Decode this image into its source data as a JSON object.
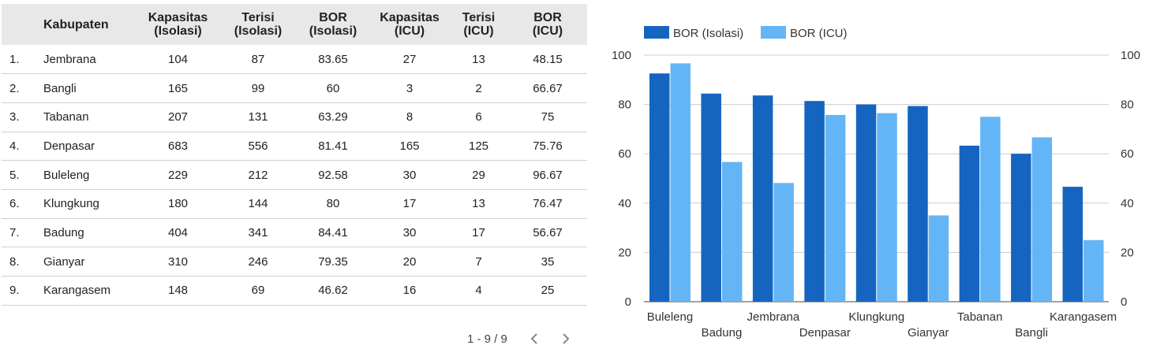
{
  "table": {
    "headers": {
      "kabupaten": "Kabupaten",
      "kap_iso": [
        "Kapasitas",
        "(Isolasi)"
      ],
      "ter_iso": [
        "Terisi",
        "(Isolasi)"
      ],
      "bor_iso": [
        "BOR",
        "(Isolasi)"
      ],
      "kap_icu": [
        "Kapasitas",
        "(ICU)"
      ],
      "ter_icu": [
        "Terisi",
        "(ICU)"
      ],
      "bor_icu": [
        "BOR",
        "(ICU)"
      ]
    },
    "rows": [
      {
        "idx": "1.",
        "kab": "Jembrana",
        "kap_iso": "104",
        "ter_iso": "87",
        "bor_iso": "83.65",
        "kap_icu": "27",
        "ter_icu": "13",
        "bor_icu": "48.15"
      },
      {
        "idx": "2.",
        "kab": "Bangli",
        "kap_iso": "165",
        "ter_iso": "99",
        "bor_iso": "60",
        "kap_icu": "3",
        "ter_icu": "2",
        "bor_icu": "66.67"
      },
      {
        "idx": "3.",
        "kab": "Tabanan",
        "kap_iso": "207",
        "ter_iso": "131",
        "bor_iso": "63.29",
        "kap_icu": "8",
        "ter_icu": "6",
        "bor_icu": "75"
      },
      {
        "idx": "4.",
        "kab": "Denpasar",
        "kap_iso": "683",
        "ter_iso": "556",
        "bor_iso": "81.41",
        "kap_icu": "165",
        "ter_icu": "125",
        "bor_icu": "75.76"
      },
      {
        "idx": "5.",
        "kab": "Buleleng",
        "kap_iso": "229",
        "ter_iso": "212",
        "bor_iso": "92.58",
        "kap_icu": "30",
        "ter_icu": "29",
        "bor_icu": "96.67"
      },
      {
        "idx": "6.",
        "kab": "Klungkung",
        "kap_iso": "180",
        "ter_iso": "144",
        "bor_iso": "80",
        "kap_icu": "17",
        "ter_icu": "13",
        "bor_icu": "76.47"
      },
      {
        "idx": "7.",
        "kab": "Badung",
        "kap_iso": "404",
        "ter_iso": "341",
        "bor_iso": "84.41",
        "kap_icu": "30",
        "ter_icu": "17",
        "bor_icu": "56.67"
      },
      {
        "idx": "8.",
        "kab": "Gianyar",
        "kap_iso": "310",
        "ter_iso": "246",
        "bor_iso": "79.35",
        "kap_icu": "20",
        "ter_icu": "7",
        "bor_icu": "35"
      },
      {
        "idx": "9.",
        "kab": "Karangasem",
        "kap_iso": "148",
        "ter_iso": "69",
        "bor_iso": "46.62",
        "kap_icu": "16",
        "ter_icu": "4",
        "bor_icu": "25"
      }
    ]
  },
  "pager": {
    "info": "1 - 9 / 9",
    "prev_icon": "chevron-left-icon",
    "next_icon": "chevron-right-icon"
  },
  "chart_data": {
    "type": "bar",
    "title": "",
    "xlabel": "",
    "ylabel": "",
    "ylim": [
      0,
      100
    ],
    "yticks": [
      0,
      20,
      40,
      60,
      80,
      100
    ],
    "grid": true,
    "legend_position": "top-left",
    "categories": [
      "Buleleng",
      "Badung",
      "Jembrana",
      "Denpasar",
      "Klungkung",
      "Gianyar",
      "Tabanan",
      "Bangli",
      "Karangasem"
    ],
    "series": [
      {
        "name": "BOR (Isolasi)",
        "color": "#1565c0",
        "values": [
          92.58,
          84.41,
          83.65,
          81.41,
          80,
          79.35,
          63.29,
          60,
          46.62
        ]
      },
      {
        "name": "BOR (ICU)",
        "color": "#64b5f6",
        "values": [
          96.67,
          56.67,
          48.15,
          75.76,
          76.47,
          35,
          75,
          66.67,
          25
        ]
      }
    ]
  }
}
